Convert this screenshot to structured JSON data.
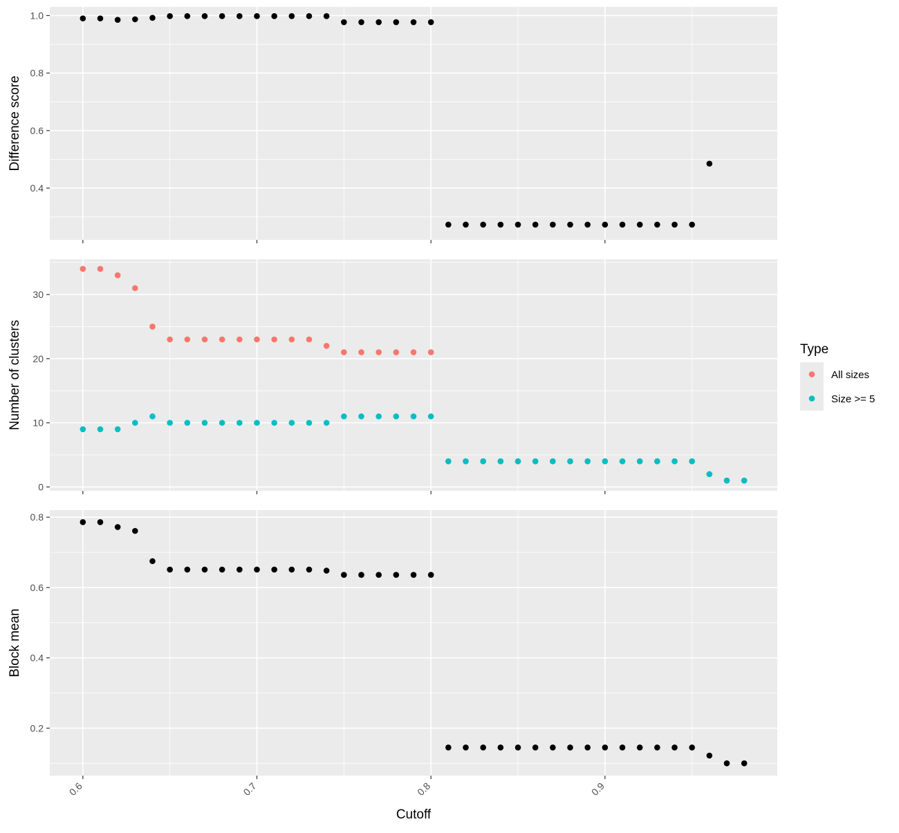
{
  "chart_data": {
    "type": "scatter",
    "xlabel": "Cutoff",
    "xlim": [
      0.581,
      0.999
    ],
    "x_ticks": [
      "0.6",
      "0.7",
      "0.8",
      "0.9"
    ],
    "x": [
      0.6,
      0.61,
      0.62,
      0.63,
      0.64,
      0.65,
      0.66,
      0.67,
      0.68,
      0.69,
      0.7,
      0.71,
      0.72,
      0.73,
      0.74,
      0.75,
      0.76,
      0.77,
      0.78,
      0.79,
      0.8,
      0.81,
      0.82,
      0.83,
      0.84,
      0.85,
      0.86,
      0.87,
      0.88,
      0.89,
      0.9,
      0.91,
      0.92,
      0.93,
      0.94,
      0.95,
      0.96,
      0.97,
      0.98
    ],
    "colors": {
      "panel_bg": "#EBEBEB",
      "grid": "#FFFFFF",
      "all_sizes": "#F8766D",
      "size_ge_5": "#00BFC4",
      "point": "#000000"
    },
    "legend": {
      "title": "Type",
      "placement": "right",
      "entries": [
        {
          "label": "All sizes",
          "color": "#F8766D"
        },
        {
          "label": "Size >= 5",
          "color": "#00BFC4"
        }
      ]
    },
    "panels": [
      {
        "ylabel": "Difference score",
        "ylim": [
          0.22,
          1.03
        ],
        "y_ticks": [
          "0.4",
          "0.6",
          "0.8",
          "1.0"
        ],
        "y_tick_values": [
          0.4,
          0.6,
          0.8,
          1.0
        ],
        "series": [
          {
            "color": "#000000",
            "values": [
              0.99,
              0.99,
              0.985,
              0.987,
              0.992,
              0.998,
              0.998,
              0.998,
              0.998,
              0.998,
              0.998,
              0.998,
              0.998,
              0.998,
              0.998,
              0.977,
              0.977,
              0.977,
              0.977,
              0.977,
              0.977,
              0.273,
              0.273,
              0.273,
              0.273,
              0.273,
              0.273,
              0.273,
              0.273,
              0.273,
              0.273,
              0.273,
              0.273,
              0.273,
              0.273,
              0.273,
              0.485,
              null,
              null
            ]
          }
        ]
      },
      {
        "ylabel": "Number of clusters",
        "ylim": [
          -0.6,
          35.5
        ],
        "y_ticks": [
          "0",
          "10",
          "20",
          "30"
        ],
        "y_tick_values": [
          0,
          10,
          20,
          30
        ],
        "series": [
          {
            "name": "All sizes",
            "color": "#F8766D",
            "values": [
              34,
              34,
              33,
              31,
              25,
              23,
              23,
              23,
              23,
              23,
              23,
              23,
              23,
              23,
              22,
              21,
              21,
              21,
              21,
              21,
              21,
              4,
              4,
              4,
              4,
              4,
              4,
              4,
              4,
              4,
              4,
              4,
              4,
              4,
              4,
              4,
              2,
              1,
              1
            ]
          },
          {
            "name": "Size >= 5",
            "color": "#00BFC4",
            "values": [
              9,
              9,
              9,
              10,
              11,
              10,
              10,
              10,
              10,
              10,
              10,
              10,
              10,
              10,
              10,
              11,
              11,
              11,
              11,
              11,
              11,
              4,
              4,
              4,
              4,
              4,
              4,
              4,
              4,
              4,
              4,
              4,
              4,
              4,
              4,
              4,
              2,
              1,
              1
            ]
          }
        ]
      },
      {
        "ylabel": "Block mean",
        "ylim": [
          0.065,
          0.82
        ],
        "y_ticks": [
          "0.2",
          "0.4",
          "0.6",
          "0.8"
        ],
        "y_tick_values": [
          0.2,
          0.4,
          0.6,
          0.8
        ],
        "series": [
          {
            "color": "#000000",
            "values": [
              0.786,
              0.786,
              0.772,
              0.761,
              0.675,
              0.651,
              0.651,
              0.651,
              0.651,
              0.651,
              0.651,
              0.651,
              0.651,
              0.651,
              0.648,
              0.636,
              0.636,
              0.636,
              0.636,
              0.636,
              0.636,
              0.145,
              0.145,
              0.145,
              0.145,
              0.145,
              0.145,
              0.145,
              0.145,
              0.145,
              0.145,
              0.145,
              0.145,
              0.145,
              0.145,
              0.145,
              0.122,
              0.1,
              0.1
            ]
          }
        ]
      }
    ]
  }
}
